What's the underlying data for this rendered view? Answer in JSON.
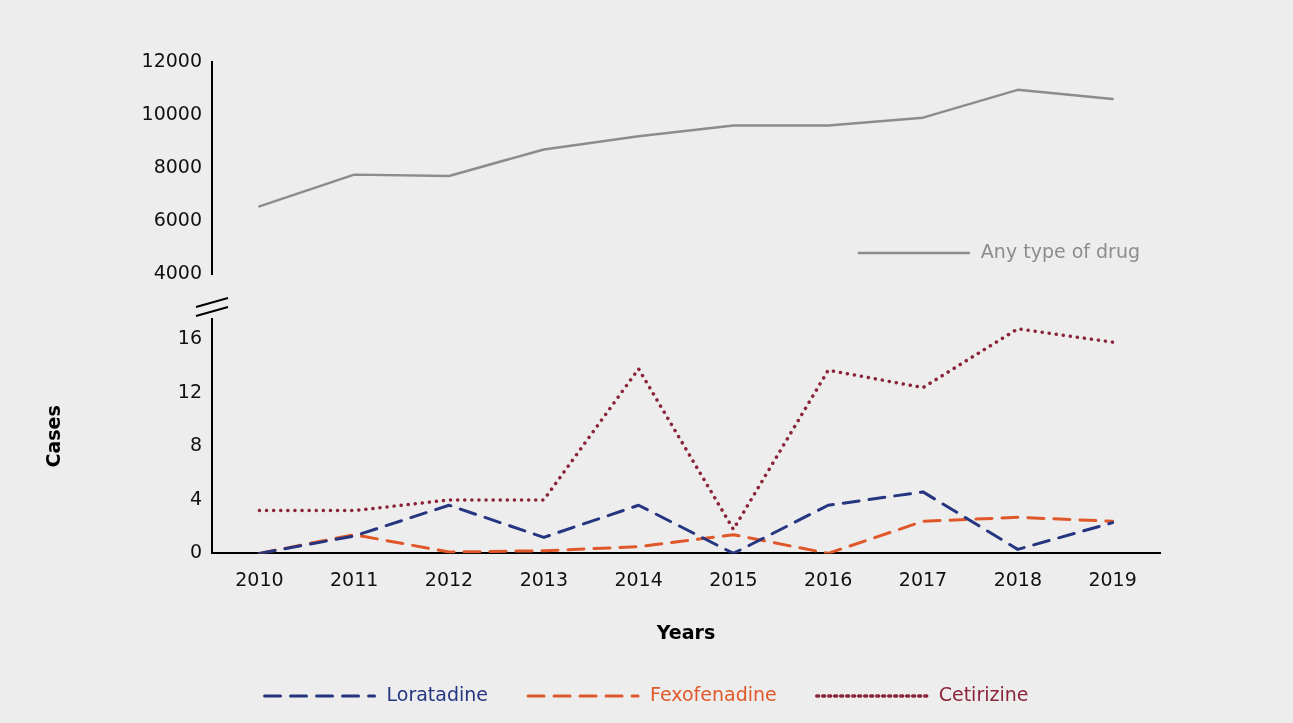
{
  "chart_data": [
    {
      "type": "line",
      "categories": [
        "2010",
        "2011",
        "2012",
        "2013",
        "2014",
        "2015",
        "2016",
        "2017",
        "2018",
        "2019"
      ],
      "series": [
        {
          "name": "Any type of drug",
          "color": "#8c8c8c",
          "line_style": "solid",
          "values": [
            6550,
            7750,
            7700,
            8700,
            9200,
            9600,
            9600,
            9900,
            10950,
            10600
          ]
        }
      ],
      "ylim": [
        4000,
        12000
      ],
      "yticks": [
        4000,
        6000,
        8000,
        10000,
        12000
      ],
      "tick_labels": "y",
      "marker": "none",
      "legend": "bottom right"
    },
    {
      "type": "line",
      "xlabel": "Years",
      "ylabel": "Cases",
      "categories": [
        "2010",
        "2011",
        "2012",
        "2013",
        "2014",
        "2015",
        "2016",
        "2017",
        "2018",
        "2019"
      ],
      "series": [
        {
          "name": "Loratadine",
          "color": "#263580",
          "line_style": "dashed",
          "values": [
            0,
            1.3,
            3.6,
            1.2,
            3.6,
            0,
            3.6,
            4.6,
            0.3,
            2.3
          ]
        },
        {
          "name": "Fexofenadine",
          "color": "#e0582a",
          "line_style": "dashed",
          "values": [
            0,
            1.4,
            0.1,
            0.2,
            0.5,
            1.4,
            0,
            2.4,
            2.7,
            2.4
          ]
        },
        {
          "name": "Cetirizine",
          "color": "#8b2339",
          "line_style": "dotted",
          "values": [
            3.2,
            3.2,
            4,
            4,
            13.8,
            1.8,
            13.7,
            12.4,
            16.8,
            15.8
          ]
        }
      ],
      "ylim": [
        0,
        17.5
      ],
      "yticks": [
        0,
        4,
        8,
        12,
        16
      ],
      "marker": "none",
      "legend": "bottom"
    }
  ]
}
